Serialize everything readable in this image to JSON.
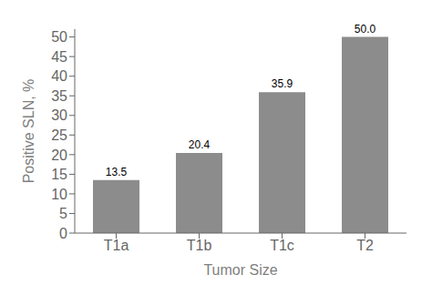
{
  "chart_data": {
    "type": "bar",
    "categories": [
      "T1a",
      "T1b",
      "T1c",
      "T2"
    ],
    "values": [
      13.5,
      20.4,
      35.9,
      50.0
    ],
    "value_labels": [
      "13.5",
      "20.4",
      "35.9",
      "50.0"
    ],
    "color": "#8c8c8c",
    "xlabel": "Tumor Size",
    "ylabel": "Positive SLN, %",
    "ylim": [
      0,
      52
    ],
    "yticks": [
      0,
      5,
      10,
      15,
      20,
      25,
      30,
      35,
      40,
      45,
      50
    ],
    "grid": false,
    "data_labels": true
  }
}
